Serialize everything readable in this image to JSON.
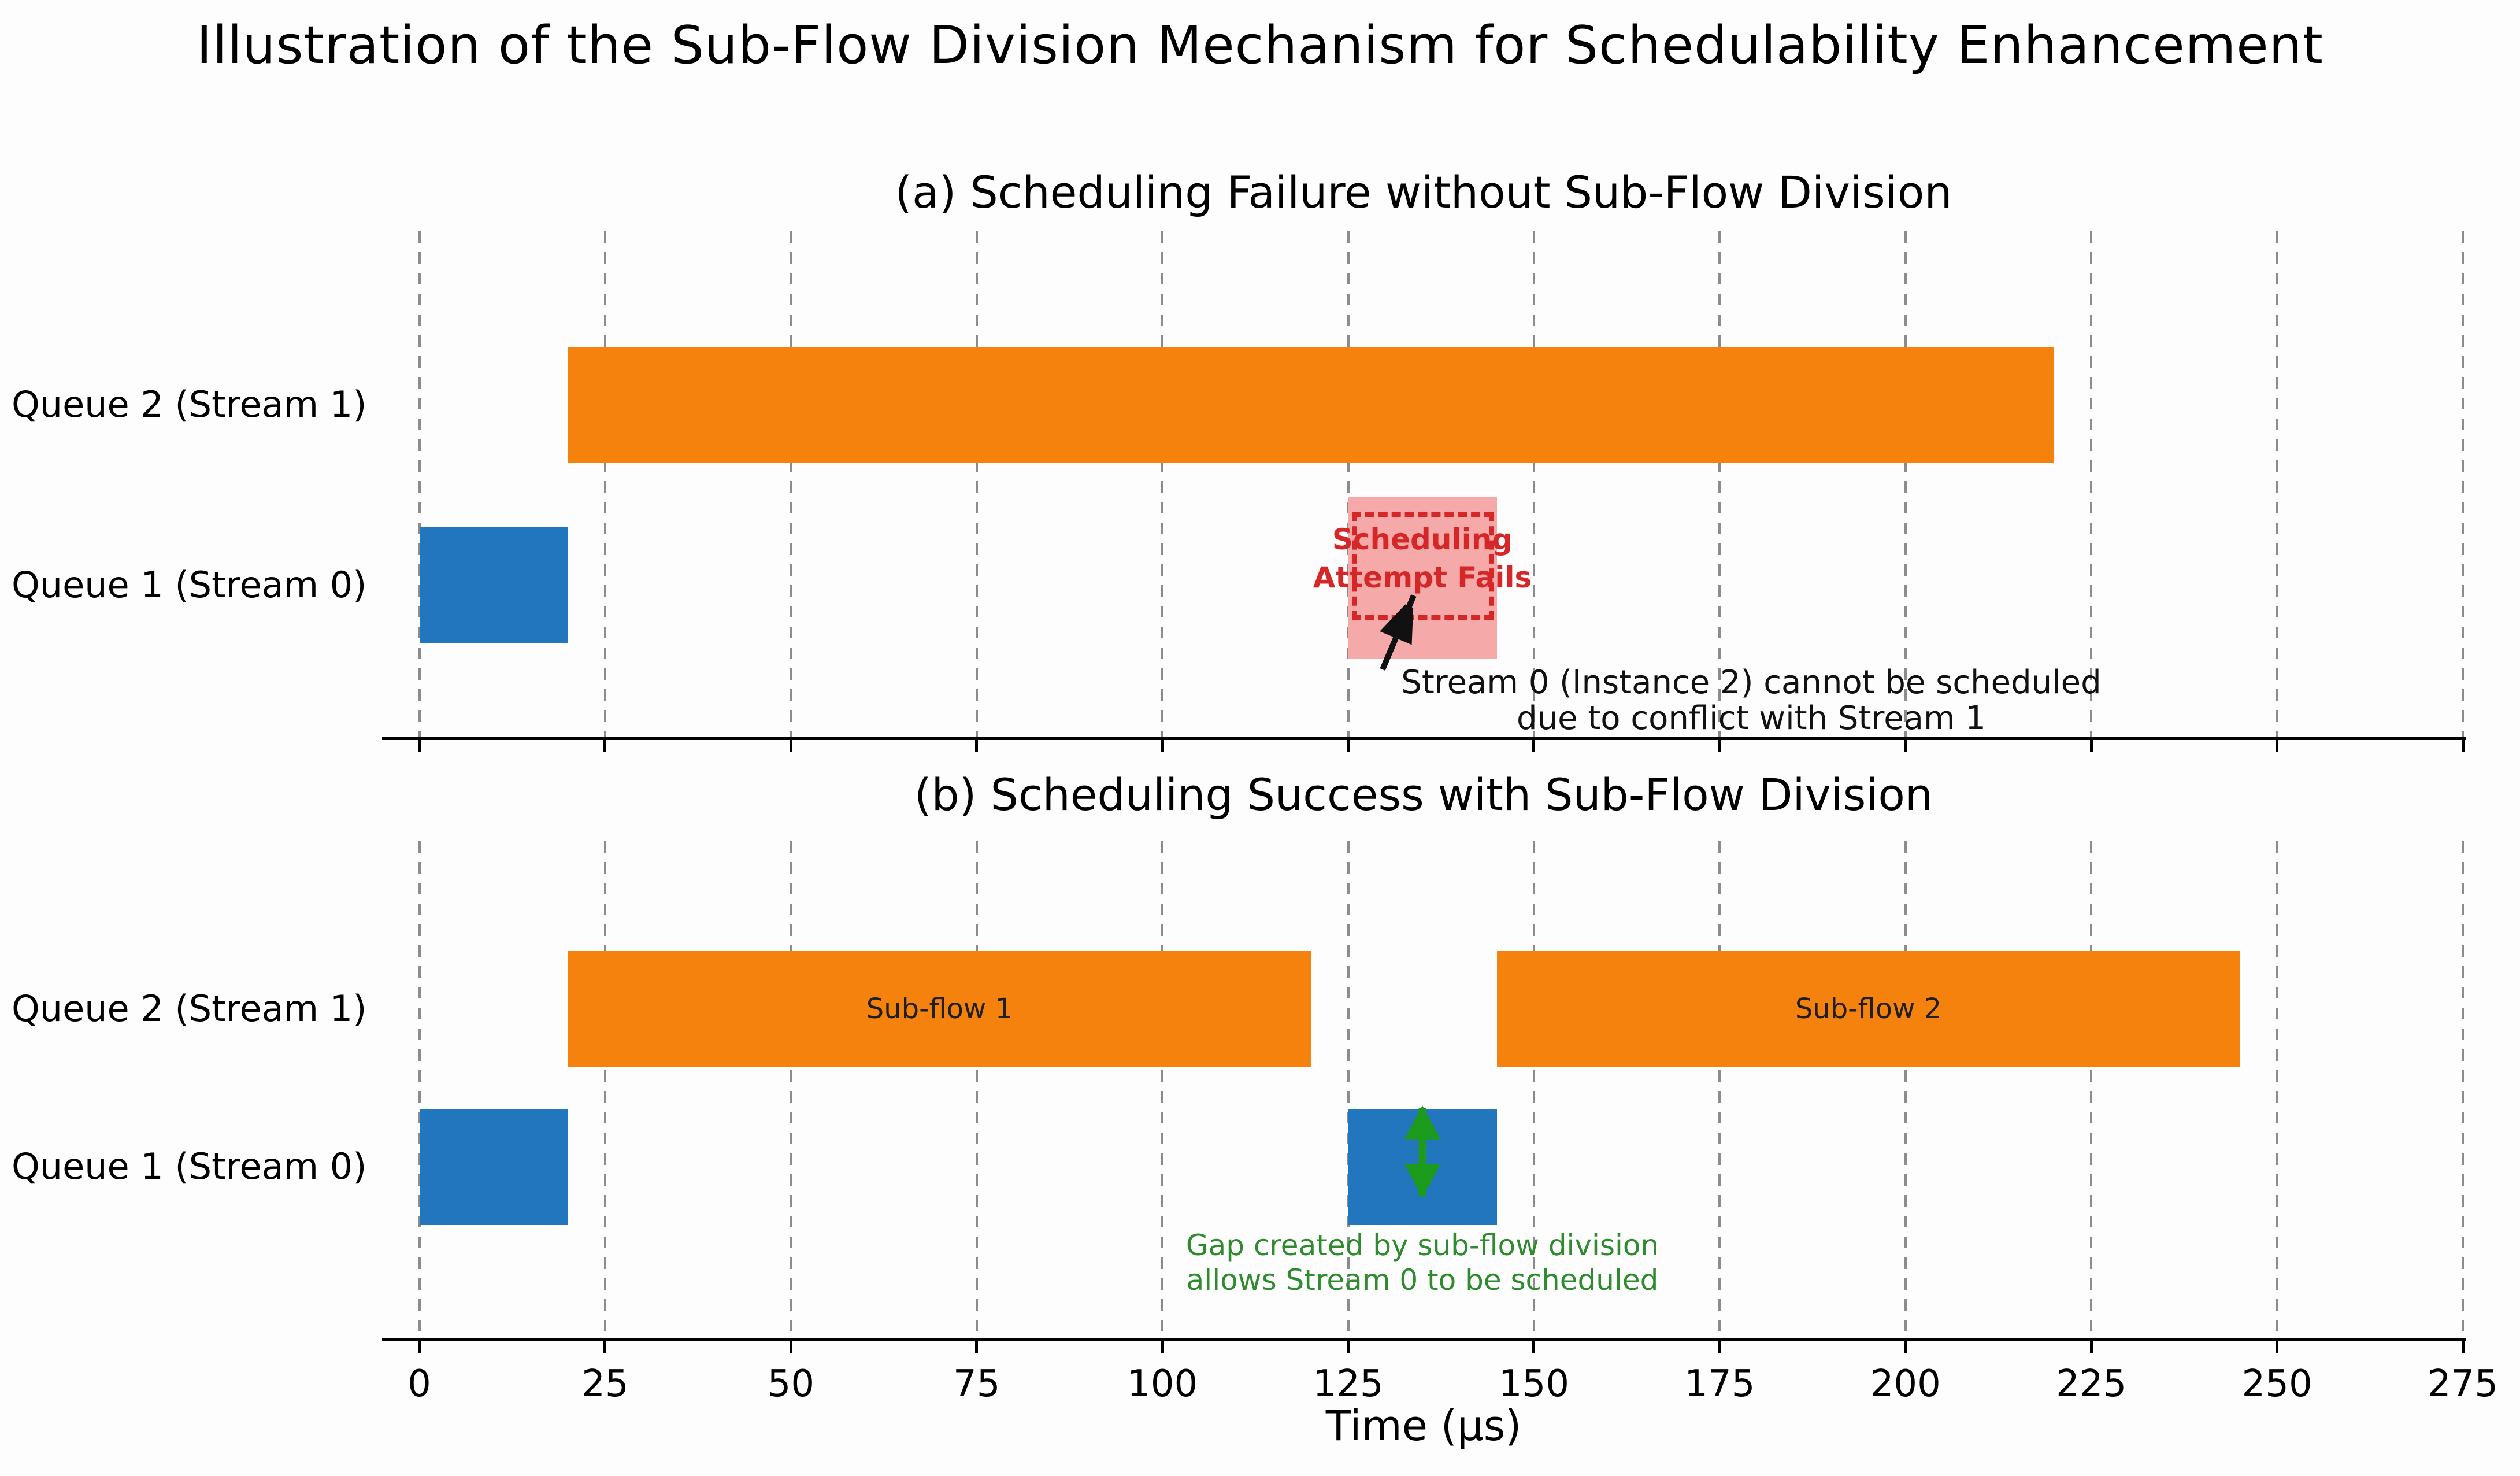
{
  "figure_title": "Illustration of the Sub-Flow Division Mechanism for Schedulability Enhancement",
  "x_axis": {
    "label": "Time (μs)",
    "ticks": [
      0,
      25,
      50,
      75,
      100,
      125,
      150,
      175,
      200,
      225,
      250,
      275
    ],
    "unit": "μs",
    "range": [
      -5,
      275
    ]
  },
  "colors": {
    "stream0_blue": "#2176bd",
    "stream1_orange": "#f5820d",
    "fail_fill_pink": "#f5a9a9",
    "fail_red": "#d62728",
    "gap_arrow_green": "#1d9b1d",
    "gap_text_green": "#2e8b2e",
    "annotation_black": "#111111",
    "grid_gray": "#8c8c8c",
    "axis_black": "#000000"
  },
  "chart_data": [
    {
      "type": "gantt",
      "panel": "a",
      "title": "(a) Scheduling Failure without Sub-Flow Division",
      "grid": "dashed-vertical",
      "x_tick_labels_visible": false,
      "queues": [
        {
          "label": "Queue 2 (Stream 1)"
        },
        {
          "label": "Queue 1 (Stream 0)"
        }
      ],
      "bars": [
        {
          "row": 0,
          "queue": "Queue 2 (Stream 1)",
          "start": 20,
          "end": 220,
          "color": "stream1_orange",
          "label": ""
        },
        {
          "row": 1,
          "queue": "Queue 1 (Stream 0)",
          "start": 0,
          "end": 20,
          "color": "stream0_blue",
          "label": ""
        }
      ],
      "failed_attempt": {
        "row": 1,
        "start": 125,
        "end": 145,
        "label_lines": [
          "Scheduling",
          "Attempt Fails"
        ]
      },
      "annotation": {
        "lines": [
          "Stream 0 (Instance 2) cannot be scheduled",
          "due to conflict with Stream 1"
        ],
        "arrow_points_to": "failed attempt box"
      }
    },
    {
      "type": "gantt",
      "panel": "b",
      "title": "(b) Scheduling Success with Sub-Flow Division",
      "grid": "dashed-vertical",
      "x_tick_labels_visible": true,
      "queues": [
        {
          "label": "Queue 2 (Stream 1)"
        },
        {
          "label": "Queue 1 (Stream 0)"
        }
      ],
      "bars": [
        {
          "row": 0,
          "queue": "Queue 2 (Stream 1)",
          "start": 20,
          "end": 120,
          "color": "stream1_orange",
          "label": "Sub-flow 1"
        },
        {
          "row": 0,
          "queue": "Queue 2 (Stream 1)",
          "start": 145,
          "end": 245,
          "color": "stream1_orange",
          "label": "Sub-flow 2"
        },
        {
          "row": 1,
          "queue": "Queue 1 (Stream 0)",
          "start": 0,
          "end": 20,
          "color": "stream0_blue",
          "label": ""
        },
        {
          "row": 1,
          "queue": "Queue 1 (Stream 0)",
          "start": 125,
          "end": 145,
          "color": "stream0_blue",
          "label": ""
        }
      ],
      "gap_annotation": {
        "lines": [
          "Gap created by sub-flow division",
          "allows Stream 0 to be scheduled"
        ],
        "arrow_at_time": 135
      }
    }
  ]
}
